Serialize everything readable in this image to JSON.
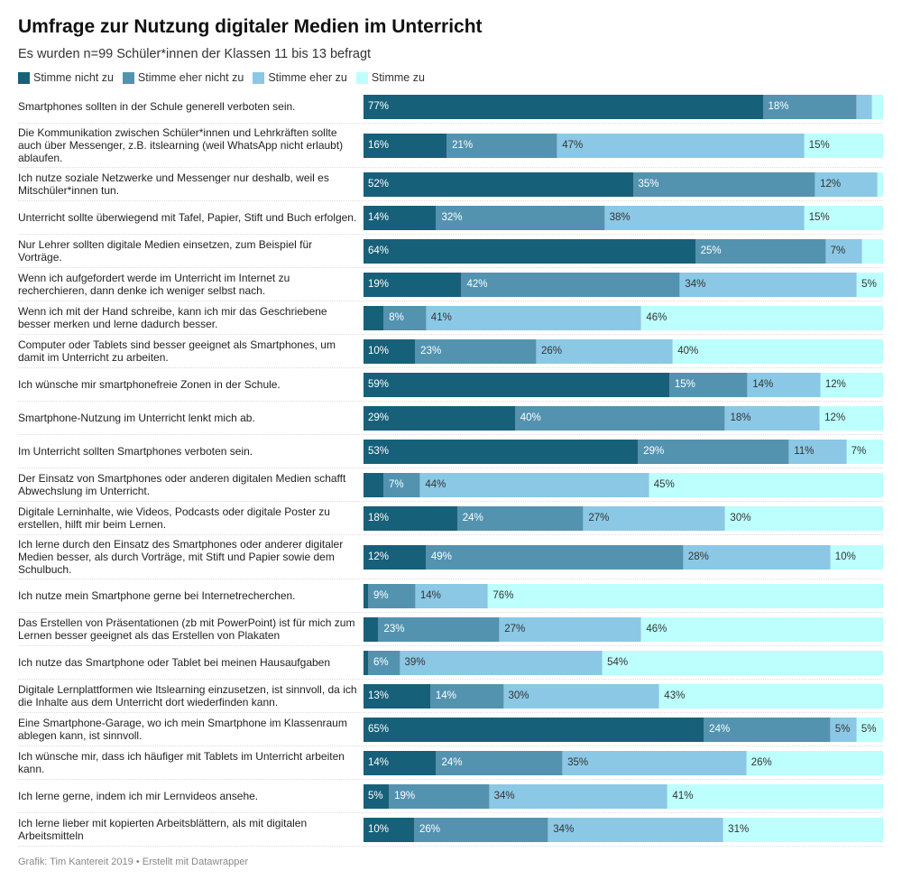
{
  "title": "Umfrage zur Nutzung digitaler Medien im Unterricht",
  "subtitle": "Es wurden n=99 Schüler*innen der Klassen 11 bis 13 befragt",
  "footer": "Grafik: Tim Kantereit 2019 • Erstellt mit Datawrapper",
  "chart_data": {
    "type": "bar",
    "orientation": "horizontal",
    "stacked": true,
    "unit": "%",
    "legend_position": "top-left",
    "series": [
      {
        "name": "Stimme nicht zu",
        "color": "#17607a",
        "text_color": "#ffffff"
      },
      {
        "name": "Stimme eher nicht zu",
        "color": "#5393b0",
        "text_color": "#ffffff"
      },
      {
        "name": "Stimme eher zu",
        "color": "#8bc8e5",
        "text_color": "#333333"
      },
      {
        "name": "Stimme zu",
        "color": "#bdfffd",
        "text_color": "#333333"
      }
    ],
    "rows": [
      {
        "label": "Smartphones sollten in der Schule generell verboten sein.",
        "values": [
          77,
          18,
          3,
          2
        ],
        "labels": [
          "77%",
          "18%",
          "",
          ""
        ]
      },
      {
        "label": "Die Kommunikation zwischen Schüler*innen und Lehrkräften sollte auch über Messenger, z.B. itslearning (weil WhatsApp nicht erlaubt) ablaufen.",
        "values": [
          16,
          21,
          47,
          15
        ],
        "labels": [
          "16%",
          "21%",
          "47%",
          "15%"
        ]
      },
      {
        "label": "Ich nutze soziale Netzwerke und Messenger nur deshalb, weil es Mitschüler*innen tun.",
        "values": [
          52,
          35,
          12,
          1
        ],
        "labels": [
          "52%",
          "35%",
          "12%",
          ""
        ]
      },
      {
        "label": "Unterricht sollte überwiegend mit Tafel, Papier, Stift und Buch erfolgen.",
        "values": [
          14,
          32,
          38,
          15
        ],
        "labels": [
          "14%",
          "32%",
          "38%",
          "15%"
        ]
      },
      {
        "label": "Nur Lehrer sollten digitale Medien einsetzen, zum Beispiel für Vorträge.",
        "values": [
          64,
          25,
          7,
          4
        ],
        "labels": [
          "64%",
          "25%",
          "7%",
          ""
        ]
      },
      {
        "label": "Wenn ich aufgefordert werde im Unterricht im Internet zu recherchieren, dann denke ich weniger selbst nach.",
        "values": [
          19,
          42,
          34,
          5
        ],
        "labels": [
          "19%",
          "42%",
          "34%",
          "5%"
        ]
      },
      {
        "label": "Wenn ich mit der Hand schreibe, kann ich mir das Geschriebene besser merken und lerne dadurch besser.",
        "values": [
          4,
          8,
          41,
          46
        ],
        "labels": [
          "",
          "8%",
          "41%",
          "46%"
        ]
      },
      {
        "label": "Computer oder Tablets sind besser geeignet als Smartphones, um damit im Unterricht zu arbeiten.",
        "values": [
          10,
          23,
          26,
          40
        ],
        "labels": [
          "10%",
          "23%",
          "26%",
          "40%"
        ]
      },
      {
        "label": "Ich wünsche mir smartphonefreie Zonen in der Schule.",
        "values": [
          59,
          15,
          14,
          12
        ],
        "labels": [
          "59%",
          "15%",
          "14%",
          "12%"
        ]
      },
      {
        "label": "Smartphone-Nutzung im Unterricht lenkt mich ab.",
        "values": [
          29,
          40,
          18,
          12
        ],
        "labels": [
          "29%",
          "40%",
          "18%",
          "12%"
        ]
      },
      {
        "label": "Im Unterricht sollten Smartphones verboten sein.",
        "values": [
          53,
          29,
          11,
          7
        ],
        "labels": [
          "53%",
          "29%",
          "11%",
          "7%"
        ]
      },
      {
        "label": "Der Einsatz von Smartphones oder anderen digitalen Medien schafft Abwechslung im Unterricht.",
        "values": [
          4,
          7,
          44,
          45
        ],
        "labels": [
          "",
          "7%",
          "44%",
          "45%"
        ]
      },
      {
        "label": "Digitale Lerninhalte, wie Videos, Podcasts oder digitale Poster zu erstellen, hilft mir beim Lernen.",
        "values": [
          18,
          24,
          27,
          30
        ],
        "labels": [
          "18%",
          "24%",
          "27%",
          "30%"
        ]
      },
      {
        "label": "Ich lerne durch den Einsatz des Smartphones oder anderer digitaler Medien besser, als durch Vorträge, mit Stift und Papier sowie dem Schulbuch.",
        "values": [
          12,
          49,
          28,
          10
        ],
        "labels": [
          "12%",
          "49%",
          "28%",
          "10%"
        ]
      },
      {
        "label": "Ich nutze mein Smartphone gerne bei Internetrecherchen.",
        "values": [
          1,
          9,
          14,
          76
        ],
        "labels": [
          "",
          "9%",
          "14%",
          "76%"
        ]
      },
      {
        "label": "Das Erstellen von Präsentationen (zb mit PowerPoint) ist für mich zum Lernen besser geeignet als das Erstellen von Plakaten",
        "values": [
          3,
          23,
          27,
          46
        ],
        "labels": [
          "",
          "23%",
          "27%",
          "46%"
        ]
      },
      {
        "label": "Ich nutze das Smartphone oder Tablet bei meinen Hausaufgaben",
        "values": [
          1,
          6,
          39,
          54
        ],
        "labels": [
          "",
          "6%",
          "39%",
          "54%"
        ]
      },
      {
        "label": "Digitale Lernplattformen wie Itslearning einzusetzen, ist sinnvoll, da ich die Inhalte aus dem Unterricht dort wiederfinden kann.",
        "values": [
          13,
          14,
          30,
          43
        ],
        "labels": [
          "13%",
          "14%",
          "30%",
          "43%"
        ]
      },
      {
        "label": "Eine Smartphone-Garage, wo ich mein Smartphone im Klassenraum ablegen kann, ist sinnvoll.",
        "values": [
          65,
          24,
          5,
          5
        ],
        "labels": [
          "65%",
          "24%",
          "5%",
          "5%"
        ]
      },
      {
        "label": "Ich wünsche mir, dass ich häufiger mit Tablets im Unterricht arbeiten kann.",
        "values": [
          14,
          24,
          35,
          26
        ],
        "labels": [
          "14%",
          "24%",
          "35%",
          "26%"
        ]
      },
      {
        "label": "Ich lerne gerne, indem ich mir Lernvideos ansehe.",
        "values": [
          5,
          19,
          34,
          41
        ],
        "labels": [
          "5%",
          "19%",
          "34%",
          "41%"
        ]
      },
      {
        "label": "Ich lerne lieber mit kopierten Arbeitsblättern, als mit digitalen Arbeitsmitteln",
        "values": [
          10,
          26,
          34,
          31
        ],
        "labels": [
          "10%",
          "26%",
          "34%",
          "31%"
        ]
      }
    ]
  }
}
